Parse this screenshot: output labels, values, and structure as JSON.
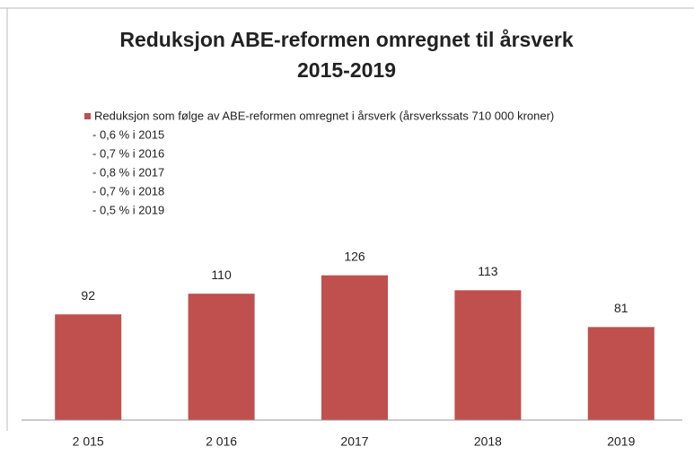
{
  "chart_data": {
    "type": "bar",
    "title": [
      "Reduksjon ABE-reformen omregnet til årsverk",
      "2015-2019"
    ],
    "categories": [
      "2 015",
      "2 016",
      "2017",
      "2018",
      "2019"
    ],
    "series": [
      {
        "name": "Reduksjon som følge av ABE-reformen omregnet i årsverk (årsverkssats 710 000 kroner)",
        "color": "#c0504d",
        "values": [
          92,
          110,
          126,
          113,
          81
        ]
      }
    ],
    "legend_notes": [
      "- 0,6 % i 2015",
      "- 0,7 % i 2016",
      "- 0,8 % i 2017",
      "- 0,7 % i 2018",
      "- 0,5 % i 2019"
    ],
    "ylim": [
      0,
      150
    ]
  }
}
